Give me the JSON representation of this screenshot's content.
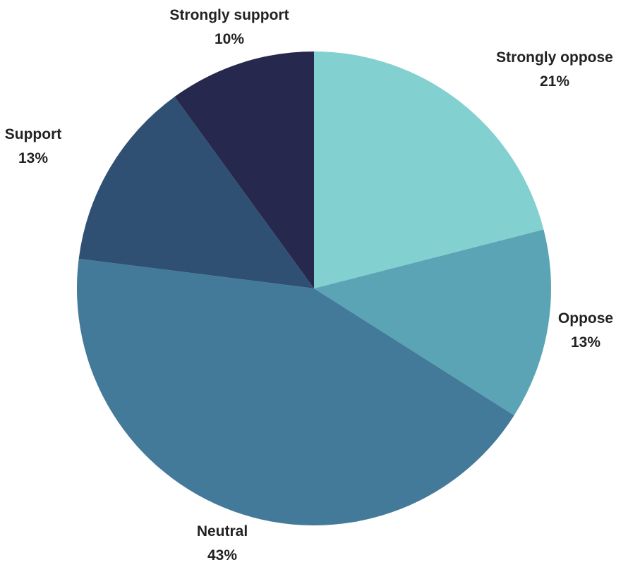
{
  "chart_data": {
    "type": "pie",
    "start_angle_deg": 0,
    "direction": "clockwise",
    "slices": [
      {
        "label": "Strongly oppose",
        "value": 21,
        "display": "21%",
        "color": "#83d0d0"
      },
      {
        "label": "Oppose",
        "value": 13,
        "display": "13%",
        "color": "#5ba4b5"
      },
      {
        "label": "Neutral",
        "value": 43,
        "display": "43%",
        "color": "#437a9a"
      },
      {
        "label": "Support",
        "value": 13,
        "display": "13%",
        "color": "#305073"
      },
      {
        "label": "Strongly support",
        "value": 10,
        "display": "10%",
        "color": "#27284d"
      }
    ]
  }
}
